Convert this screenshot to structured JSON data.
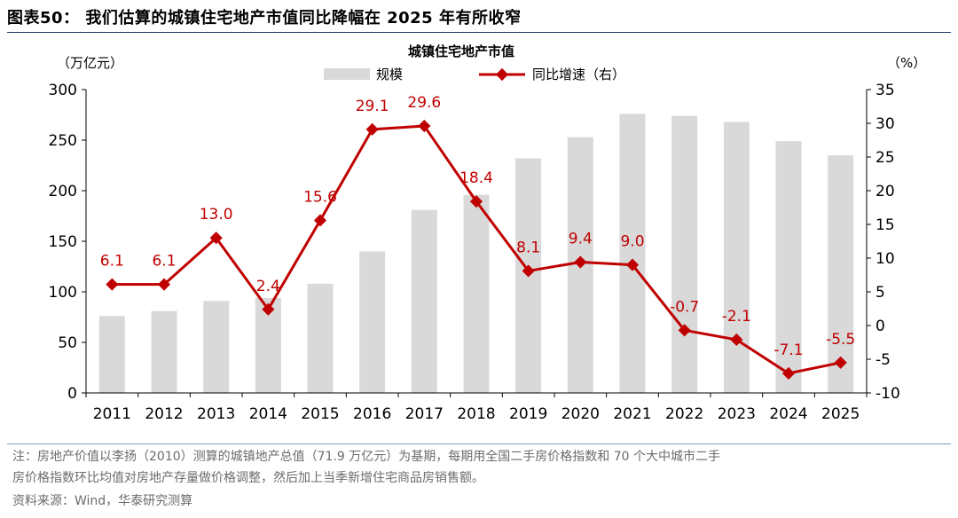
{
  "figure": {
    "title": "图表50： 我们估算的城镇住宅地产市值同比降幅在 2025 年有所收窄",
    "note_line1": "注：房地产价值以李扬（2010）测算的城镇地产总值（71.9 万亿元）为基期，每期用全国二手房价格指数和 70 个大中城市二手",
    "note_line2": "房价格指数环比均值对房地产存量做价格调整，然后加上当季新增住宅商品房销售额。",
    "source": "资料来源：Wind，华泰研究测算"
  },
  "colors": {
    "bar": "#d9d9d9",
    "line": "#c00000",
    "text": "#000000",
    "label": "#c00000"
  },
  "chart_data": {
    "type": "bar",
    "title": "城镇住宅地产市值",
    "categories": [
      "2011",
      "2012",
      "2013",
      "2014",
      "2015",
      "2016",
      "2017",
      "2018",
      "2019",
      "2020",
      "2021",
      "2022",
      "2023",
      "2024",
      "2025"
    ],
    "left_axis_unit": "（万亿元）",
    "right_axis_unit": "（%）",
    "ylim_left": [
      0,
      300
    ],
    "yticks_left": [
      "0",
      "50",
      "100",
      "150",
      "200",
      "250",
      "300"
    ],
    "ylim_right": [
      -10,
      35
    ],
    "yticks_right": [
      "-10",
      "-5",
      "0",
      "5",
      "10",
      "15",
      "20",
      "25",
      "30",
      "35"
    ],
    "grid": false,
    "legend_position": "top",
    "series": [
      {
        "name": "规模",
        "type": "bar",
        "axis": "left",
        "values": [
          76,
          81,
          91,
          94,
          108,
          140,
          181,
          196,
          232,
          253,
          276,
          274,
          268,
          249,
          235
        ]
      },
      {
        "name": "同比增速（右）",
        "type": "line",
        "axis": "right",
        "values": [
          6.1,
          6.1,
          13.0,
          2.4,
          15.6,
          29.1,
          29.6,
          18.4,
          8.1,
          9.4,
          9.0,
          -0.7,
          -2.1,
          -7.1,
          -5.5
        ],
        "labels": [
          "6.1",
          "6.1",
          "13.0",
          "2.4",
          "15.6",
          "29.1",
          "29.6",
          "18.4",
          "8.1",
          "9.4",
          "9.0",
          "-0.7",
          "-2.1",
          "-7.1",
          "-5.5"
        ]
      }
    ]
  }
}
